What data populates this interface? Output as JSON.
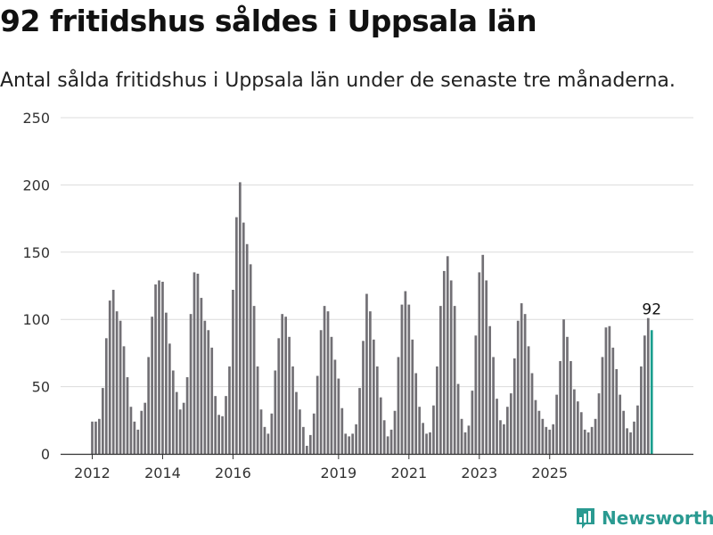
{
  "title": "92 fritidshus såldes i Uppsala län",
  "subtitle": "Antal sålda fritidshus i Uppsala län under de senaste tre månaderna.",
  "brand": {
    "name": "Newsworthy",
    "logo_icon": "newsworthy-chart-logo-icon",
    "color": "#2a9a91"
  },
  "colors": {
    "bar": "#727075",
    "highlight": "#1a9e8e",
    "grid": "#dcdcdc",
    "axis": "#333333"
  },
  "chart_data": {
    "type": "bar",
    "xlabel": "",
    "ylabel": "",
    "ylim": [
      0,
      250
    ],
    "yticks": [
      0,
      50,
      100,
      150,
      200,
      250
    ],
    "grid": true,
    "xtick_labels": [
      "2012",
      "2014",
      "2016",
      "2019",
      "2021",
      "2023",
      "2025"
    ],
    "xtick_index": [
      0,
      20,
      40,
      70,
      90,
      110,
      130
    ],
    "highlight_label": "92",
    "values": [
      24,
      24,
      26,
      49,
      86,
      114,
      122,
      106,
      99,
      80,
      57,
      35,
      24,
      18,
      32,
      38,
      72,
      102,
      126,
      129,
      128,
      105,
      82,
      62,
      46,
      33,
      38,
      57,
      104,
      135,
      134,
      116,
      99,
      92,
      79,
      43,
      29,
      28,
      43,
      65,
      122,
      176,
      202,
      172,
      156,
      141,
      110,
      65,
      33,
      20,
      15,
      30,
      62,
      86,
      104,
      102,
      87,
      65,
      46,
      33,
      20,
      6,
      14,
      30,
      58,
      92,
      110,
      106,
      87,
      70,
      56,
      34,
      15,
      13,
      15,
      22,
      49,
      84,
      119,
      106,
      85,
      65,
      42,
      25,
      13,
      18,
      32,
      72,
      111,
      121,
      111,
      85,
      60,
      35,
      23,
      15,
      16,
      36,
      65,
      110,
      136,
      147,
      129,
      110,
      52,
      26,
      16,
      21,
      47,
      88,
      135,
      148,
      129,
      95,
      72,
      41,
      25,
      22,
      35,
      45,
      71,
      99,
      112,
      104,
      80,
      60,
      40,
      32,
      26,
      20,
      18,
      22,
      44,
      69,
      100,
      87,
      69,
      48,
      39,
      31,
      18,
      16,
      20,
      26,
      45,
      72,
      94,
      95,
      79,
      63,
      44,
      32,
      19,
      16,
      24,
      36,
      65,
      88,
      101,
      92
    ]
  }
}
